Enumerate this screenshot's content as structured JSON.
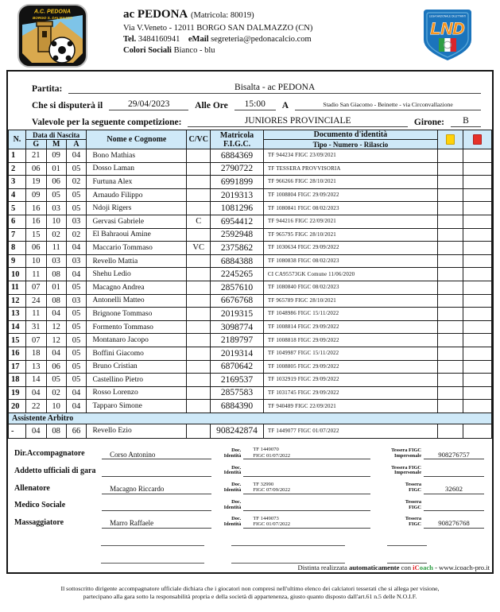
{
  "club": {
    "name": "ac PEDONA",
    "matricola": "(Matricola: 80019)",
    "address": "Via V.Veneto - 12011 BORGO SAN DALMAZZO (CN)",
    "tel_label": "Tel.",
    "tel": "3484160941",
    "email_label": "eMail",
    "email": "segreteria@pedonacalcio.com",
    "colori_label": "Colori Sociali",
    "colori": "Bianco - blu",
    "crest_line1": "A.C. PEDONA",
    "crest_line2": "BORGO S. DALMAZZO"
  },
  "lnd_text": "LND",
  "match": {
    "partita_label": "Partita:",
    "partita_value": "Bisalta - ac PEDONA",
    "date_label": "Che si disputerà il",
    "date": "29/04/2023",
    "time_label": "Alle Ore",
    "time": "15:00",
    "at_label": "A",
    "venue": "Stadio San Giacomo - Beinette - via Circonvallazione",
    "competition_label": "Valevole per la seguente competizione:",
    "competition": "JUNIORES PROVINCIALE",
    "girone_label": "Girone:",
    "girone": "B"
  },
  "table": {
    "headers": {
      "n": "N.",
      "birth": "Data di Nascita",
      "g": "G",
      "m": "M",
      "a": "A",
      "name": "Nome e Cognome",
      "cvc": "C/VC",
      "matricola_1": "Matricola",
      "matricola_2": "F.I.G.C.",
      "doc": "Documento d'identità",
      "doc_sub": "Tipo - Numero - Rilascio"
    },
    "players": [
      {
        "n": "1",
        "g": "21",
        "m": "09",
        "a": "04",
        "name": "Bono Mathias",
        "cvc": "",
        "matricola": "6884369",
        "doc": "TF   944234   FIGC 23/09/2021"
      },
      {
        "n": "2",
        "g": "06",
        "m": "01",
        "a": "05",
        "name": "Dosso Laman",
        "cvc": "",
        "matricola": "2790722",
        "doc": "TF   TESSERA PROVVISORIA"
      },
      {
        "n": "3",
        "g": "19",
        "m": "06",
        "a": "02",
        "name": "Furtuna Alex",
        "cvc": "",
        "matricola": "6991899",
        "doc": "TF   966266   FIGC 28/10/2021"
      },
      {
        "n": "4",
        "g": "09",
        "m": "05",
        "a": "05",
        "name": "Arnaudo Filippo",
        "cvc": "",
        "matricola": "2019313",
        "doc": "TF   1008804   FIGC 29/09/2022"
      },
      {
        "n": "5",
        "g": "16",
        "m": "03",
        "a": "05",
        "name": "Ndoji Rigers",
        "cvc": "",
        "matricola": "1081296",
        "doc": "TF   1080841   FIGC 08/02/2023"
      },
      {
        "n": "6",
        "g": "16",
        "m": "10",
        "a": "03",
        "name": "Gervasi Gabriele",
        "cvc": "C",
        "matricola": "6954412",
        "doc": "TF   944216   FIGC 22/09/2021"
      },
      {
        "n": "7",
        "g": "15",
        "m": "02",
        "a": "02",
        "name": "El Bahraoui Amine",
        "cvc": "",
        "matricola": "2592948",
        "doc": "TF   965795   FIGC 28/10/2021"
      },
      {
        "n": "8",
        "g": "06",
        "m": "11",
        "a": "04",
        "name": "Maccario Tommaso",
        "cvc": "VC",
        "matricola": "2375862",
        "doc": "TF   1030634   FIGC 29/09/2022"
      },
      {
        "n": "9",
        "g": "10",
        "m": "03",
        "a": "03",
        "name": "Revello Mattia",
        "cvc": "",
        "matricola": "6884388",
        "doc": "TF   1080838   FIGC 08/02/2023"
      },
      {
        "n": "10",
        "g": "11",
        "m": "08",
        "a": "04",
        "name": "Shehu Ledio",
        "cvc": "",
        "matricola": "2245265",
        "doc": "CI   CA95573GK   Comune 11/06/2020"
      },
      {
        "n": "11",
        "g": "07",
        "m": "01",
        "a": "05",
        "name": "Macagno Andrea",
        "cvc": "",
        "matricola": "2857610",
        "doc": "TF   1080840   FIGC 08/02/2023"
      },
      {
        "n": "12",
        "g": "24",
        "m": "08",
        "a": "03",
        "name": "Antonelli Matteo",
        "cvc": "",
        "matricola": "6676768",
        "doc": "TF   965789   FIGC 28/10/2021"
      },
      {
        "n": "13",
        "g": "11",
        "m": "04",
        "a": "05",
        "name": "Brignone Tommaso",
        "cvc": "",
        "matricola": "2019315",
        "doc": "TF   1048986   FIGC 15/11/2022"
      },
      {
        "n": "14",
        "g": "31",
        "m": "12",
        "a": "05",
        "name": "Formento Tommaso",
        "cvc": "",
        "matricola": "3098774",
        "doc": "TF   1008814   FIGC 29/09/2022"
      },
      {
        "n": "15",
        "g": "07",
        "m": "12",
        "a": "05",
        "name": "Montanaro Jacopo",
        "cvc": "",
        "matricola": "2189797",
        "doc": "TF   1008818   FIGC 29/09/2022"
      },
      {
        "n": "16",
        "g": "18",
        "m": "04",
        "a": "05",
        "name": "Boffini Giacomo",
        "cvc": "",
        "matricola": "2019314",
        "doc": "TF   1049987   FIGC 15/11/2022"
      },
      {
        "n": "17",
        "g": "13",
        "m": "06",
        "a": "05",
        "name": "Bruno Cristian",
        "cvc": "",
        "matricola": "6870642",
        "doc": "TF   1008805   FIGC 29/09/2022"
      },
      {
        "n": "18",
        "g": "14",
        "m": "05",
        "a": "05",
        "name": "Castellino Pietro",
        "cvc": "",
        "matricola": "2169537",
        "doc": "TF   1032919   FIGC 29/09/2022"
      },
      {
        "n": "19",
        "g": "04",
        "m": "02",
        "a": "04",
        "name": "Rosso Lorenzo",
        "cvc": "",
        "matricola": "2857583",
        "doc": "TF   1031745   FIGC 29/09/2022"
      },
      {
        "n": "20",
        "g": "22",
        "m": "10",
        "a": "04",
        "name": "Tapparo Simone",
        "cvc": "",
        "matricola": "6884390",
        "doc": "TF   940489   FIGC 22/09/2021"
      }
    ],
    "assistant_header": "Assistente Arbitro",
    "assistant": {
      "n": "-",
      "g": "04",
      "m": "08",
      "a": "66",
      "name": "Revello Ezio",
      "cvc": "",
      "matricola": "908242874",
      "doc": "TF   1449077   FIGC 01/07/2022"
    }
  },
  "staff": {
    "doc_label_1": "Doc.",
    "doc_label_2": "Identità",
    "rows": [
      {
        "role": "Dir.Accompagnatore",
        "name": "Corso Antonino",
        "doc1": "TF   1449070",
        "doc2": "FIGC 01/07/2022",
        "tlabel1": "Tessera FIGC",
        "tlabel2": "Impersonale",
        "tessera": "908276757"
      },
      {
        "role": "Addetto ufficiali di gara",
        "name": "",
        "doc1": "",
        "doc2": "",
        "tlabel1": "Tessera FIGC",
        "tlabel2": "Impersonale",
        "tessera": ""
      },
      {
        "role": "Allenatore",
        "name": "Macagno Riccardo",
        "doc1": "TF   32990",
        "doc2": "FIGC 07/09/2022",
        "tlabel1": "Tessera",
        "tlabel2": "FIGC",
        "tessera": "32602"
      },
      {
        "role": "Medico Sociale",
        "name": "",
        "doc1": "",
        "doc2": "",
        "tlabel1": "Tessera",
        "tlabel2": "FIGC",
        "tessera": ""
      },
      {
        "role": "Massaggiatore",
        "name": "Marro Raffaele",
        "doc1": "TF   1449073",
        "doc2": "FIGC 01/07/2022",
        "tlabel1": "Tessera",
        "tlabel2": "FIGC",
        "tessera": "908276768"
      }
    ]
  },
  "footer": {
    "credit_prefix": "Distinta realizzata ",
    "credit_bold": "automaticamente",
    "credit_mid": " con ",
    "brand_red": "iC",
    "brand_green": "oach",
    "credit_suffix": " - www.icoach-pro.it",
    "disclaimer_1": "Il sottoscritto dirigente accompagnatore ufficiale dichiara che i giocatori non compresi nell'ultimo elenco dei calciatori tesserati che si allega per visione,",
    "disclaimer_2": "partecipano alla gara sotto la responsabilità propria e della società di appartenenza, giusto quanto disposto dall'art.61 n.5 delle N.O.I.F."
  },
  "colors": {
    "header_blue": "#cfe9f8",
    "card_yellow": "#ffd20a",
    "card_red": "#e63229",
    "lnd_blue": "#1b74bc",
    "lnd_orange": "#f7941d",
    "crest_tan": "#d9a94e",
    "crest_sky": "#7ec4e8"
  }
}
